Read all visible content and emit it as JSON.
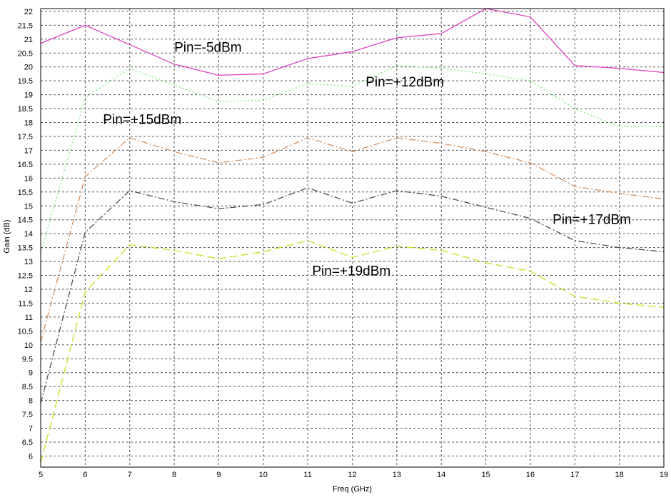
{
  "chart_data": {
    "type": "line",
    "title": "",
    "xlabel": "Freq (GHz)",
    "ylabel": "Gain (dB)",
    "xlim": [
      5,
      19
    ],
    "ylim": [
      5.6,
      22.1
    ],
    "xticks": [
      5,
      6,
      7,
      8,
      9,
      10,
      11,
      12,
      13,
      14,
      15,
      16,
      17,
      18,
      19
    ],
    "yticks": [
      6,
      6.5,
      7,
      7.5,
      8,
      8.5,
      9,
      9.5,
      10,
      10.5,
      11,
      11.5,
      12,
      12.5,
      13,
      13.5,
      14,
      14.5,
      15,
      15.5,
      16,
      16.5,
      17,
      17.5,
      18,
      18.5,
      19,
      19.5,
      20,
      20.5,
      21,
      21.5,
      22
    ],
    "grid": true,
    "x": [
      5,
      6,
      7,
      8,
      9,
      10,
      11,
      12,
      13,
      14,
      15,
      16,
      17,
      18,
      19
    ],
    "series": [
      {
        "color": "#e040c0",
        "dash": "solid",
        "values": [
          20.85,
          21.5,
          20.8,
          20.1,
          19.7,
          19.75,
          20.3,
          20.55,
          21.05,
          21.2,
          22.1,
          21.8,
          20.05,
          19.95,
          19.8
        ]
      },
      {
        "color": "#7ee87e",
        "dash": "dots",
        "values": [
          13.3,
          18.9,
          19.95,
          19.35,
          18.75,
          18.8,
          19.4,
          19.3,
          20.05,
          19.95,
          19.75,
          19.5,
          18.5,
          17.85,
          17.85
        ]
      },
      {
        "color": "#d49060",
        "dash": "dashdot",
        "values": [
          10.1,
          16.05,
          17.45,
          16.95,
          16.55,
          16.75,
          17.45,
          16.95,
          17.45,
          17.25,
          16.95,
          16.55,
          15.7,
          15.45,
          15.25
        ]
      },
      {
        "color": "#505050",
        "dash": "dashdot",
        "values": [
          7.9,
          14.05,
          15.55,
          15.15,
          14.9,
          15.05,
          15.65,
          15.1,
          15.55,
          15.35,
          14.95,
          14.55,
          13.75,
          13.5,
          13.35
        ]
      },
      {
        "color": "#ccdd22",
        "dash": "dash",
        "values": [
          5.75,
          11.9,
          13.6,
          13.4,
          13.1,
          13.35,
          13.75,
          13.15,
          13.55,
          13.4,
          12.95,
          12.65,
          11.75,
          11.5,
          11.35
        ]
      }
    ],
    "annotations": [
      {
        "text": "Pin=-5dBm",
        "x": 8.0,
        "y": 20.55
      },
      {
        "text": "Pin=+12dBm",
        "x": 12.3,
        "y": 19.3
      },
      {
        "text": "Pin=+15dBm",
        "x": 6.4,
        "y": 17.95
      },
      {
        "text": "Pin=+17dBm",
        "x": 16.5,
        "y": 14.35
      },
      {
        "text": "Pin=+19dBm",
        "x": 11.1,
        "y": 12.5
      }
    ]
  }
}
